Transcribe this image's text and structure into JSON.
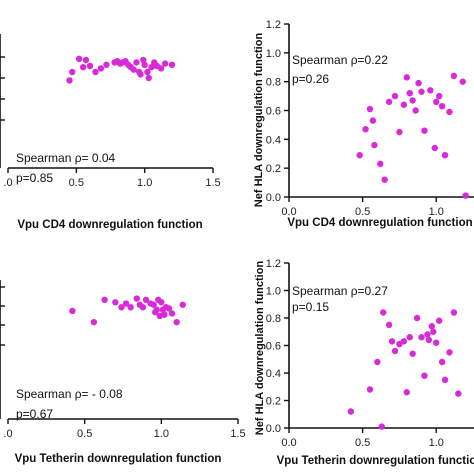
{
  "colors": {
    "point": "#d92ad9",
    "axis": "#111111"
  },
  "chart_data": [
    {
      "panel": "top-left",
      "type": "scatter",
      "xlabel": "Vpu CD4 downregulation function",
      "ylabel": "",
      "xlim": [
        0.0,
        1.5
      ],
      "ylim": [
        0.0,
        1.2
      ],
      "x_ticks": [
        0.0,
        0.5,
        1.0,
        1.5
      ],
      "x_tick_labels": [
        ".0",
        "0.5",
        "1.0",
        "1.5"
      ],
      "y_ticks": [],
      "y_tick_labels": [],
      "stats": [
        "Spearman ρ= 0.04",
        "p=0.85"
      ],
      "points": [
        [
          0.45,
          0.73
        ],
        [
          0.47,
          0.8
        ],
        [
          0.52,
          0.91
        ],
        [
          0.55,
          0.84
        ],
        [
          0.57,
          0.9
        ],
        [
          0.6,
          0.85
        ],
        [
          0.64,
          0.8
        ],
        [
          0.68,
          0.83
        ],
        [
          0.72,
          0.86
        ],
        [
          0.78,
          0.88
        ],
        [
          0.8,
          0.89
        ],
        [
          0.82,
          0.87
        ],
        [
          0.84,
          0.88
        ],
        [
          0.86,
          0.89
        ],
        [
          0.88,
          0.86
        ],
        [
          0.9,
          0.84
        ],
        [
          0.92,
          0.82
        ],
        [
          0.94,
          0.88
        ],
        [
          0.96,
          0.8
        ],
        [
          0.97,
          0.78
        ],
        [
          0.99,
          0.9
        ],
        [
          1.0,
          0.86
        ],
        [
          1.02,
          0.8
        ],
        [
          1.03,
          0.75
        ],
        [
          1.05,
          0.84
        ],
        [
          1.07,
          0.88
        ],
        [
          1.09,
          0.85
        ],
        [
          1.12,
          0.83
        ],
        [
          1.15,
          0.87
        ],
        [
          1.2,
          0.86
        ]
      ]
    },
    {
      "panel": "top-right",
      "type": "scatter",
      "xlabel": "Vpu CD4 downregulation function",
      "ylabel": "Nef HLA downregulation function",
      "xlim": [
        0.0,
        1.2
      ],
      "ylim": [
        0.0,
        1.2
      ],
      "x_ticks": [
        0.0,
        0.5,
        1.0
      ],
      "x_tick_labels": [
        "0.0",
        "0.5",
        "1.0"
      ],
      "y_ticks": [
        0.0,
        0.2,
        0.4,
        0.6,
        0.8,
        1.0,
        1.2
      ],
      "y_tick_labels": [
        "0.0",
        "0.2",
        "0.4",
        "0.6",
        "0.8",
        "1.0",
        "1.2"
      ],
      "stats": [
        "Spearman ρ=0.22",
        "p=0.26"
      ],
      "points": [
        [
          0.48,
          0.29
        ],
        [
          0.52,
          0.47
        ],
        [
          0.55,
          0.61
        ],
        [
          0.57,
          0.53
        ],
        [
          0.58,
          0.36
        ],
        [
          0.62,
          0.23
        ],
        [
          0.65,
          0.12
        ],
        [
          0.68,
          0.66
        ],
        [
          0.72,
          0.7
        ],
        [
          0.75,
          0.45
        ],
        [
          0.78,
          0.64
        ],
        [
          0.8,
          0.83
        ],
        [
          0.82,
          0.72
        ],
        [
          0.84,
          0.67
        ],
        [
          0.86,
          0.6
        ],
        [
          0.88,
          0.79
        ],
        [
          0.9,
          0.73
        ],
        [
          0.92,
          0.46
        ],
        [
          0.96,
          0.74
        ],
        [
          0.99,
          0.34
        ],
        [
          1.0,
          0.66
        ],
        [
          1.02,
          0.7
        ],
        [
          1.04,
          0.63
        ],
        [
          1.06,
          0.29
        ],
        [
          1.09,
          0.59
        ],
        [
          1.12,
          0.84
        ],
        [
          1.18,
          0.8
        ],
        [
          1.2,
          0.01
        ]
      ]
    },
    {
      "panel": "bottom-left",
      "type": "scatter",
      "xlabel": "Vpu Tetherin downregulation function",
      "ylabel": "",
      "xlim": [
        0.0,
        1.5
      ],
      "ylim": [
        0.0,
        1.2
      ],
      "x_ticks": [
        0.0,
        0.5,
        1.0,
        1.5
      ],
      "x_tick_labels": [
        ".0",
        "0.5",
        "1.0",
        "1.5"
      ],
      "y_ticks": [],
      "y_tick_labels": [],
      "stats": [
        "Spearman ρ= - 0.08",
        "p=0.67"
      ],
      "points": [
        [
          0.42,
          0.87
        ],
        [
          0.56,
          0.78
        ],
        [
          0.63,
          0.96
        ],
        [
          0.7,
          0.94
        ],
        [
          0.74,
          0.9
        ],
        [
          0.77,
          0.93
        ],
        [
          0.8,
          0.9
        ],
        [
          0.84,
          0.97
        ],
        [
          0.86,
          0.92
        ],
        [
          0.88,
          0.9
        ],
        [
          0.9,
          0.96
        ],
        [
          0.93,
          0.93
        ],
        [
          0.95,
          0.92
        ],
        [
          0.96,
          0.86
        ],
        [
          0.97,
          0.88
        ],
        [
          0.98,
          0.96
        ],
        [
          0.99,
          0.83
        ],
        [
          1.0,
          0.94
        ],
        [
          1.01,
          0.88
        ],
        [
          1.02,
          0.84
        ],
        [
          1.03,
          0.9
        ],
        [
          1.05,
          0.89
        ],
        [
          1.07,
          0.85
        ],
        [
          1.1,
          0.78
        ],
        [
          1.14,
          0.92
        ]
      ]
    },
    {
      "panel": "bottom-right",
      "type": "scatter",
      "xlabel": "Vpu Tetherin downregulation function",
      "ylabel": "Nef HLA downregulation function",
      "xlim": [
        0.0,
        1.2
      ],
      "ylim": [
        0.0,
        1.2
      ],
      "x_ticks": [
        0.0,
        0.5,
        1.0
      ],
      "x_tick_labels": [
        "0.0",
        "0.5",
        "1.0"
      ],
      "y_ticks": [
        0.0,
        0.2,
        0.4,
        0.6,
        0.8,
        1.0,
        1.2
      ],
      "y_tick_labels": [
        "0.0",
        "0.2",
        "0.4",
        "0.6",
        "0.8",
        "1.0",
        "1.2"
      ],
      "stats": [
        "Spearman ρ=0.27",
        "p=0.15"
      ],
      "points": [
        [
          0.42,
          0.12
        ],
        [
          0.55,
          0.28
        ],
        [
          0.6,
          0.48
        ],
        [
          0.64,
          0.84
        ],
        [
          0.68,
          0.75
        ],
        [
          0.7,
          0.63
        ],
        [
          0.72,
          0.56
        ],
        [
          0.75,
          0.61
        ],
        [
          0.78,
          0.63
        ],
        [
          0.8,
          0.26
        ],
        [
          0.82,
          0.66
        ],
        [
          0.84,
          0.54
        ],
        [
          0.87,
          0.8
        ],
        [
          0.9,
          0.66
        ],
        [
          0.92,
          0.38
        ],
        [
          0.94,
          0.68
        ],
        [
          0.95,
          0.64
        ],
        [
          0.97,
          0.74
        ],
        [
          0.98,
          0.7
        ],
        [
          1.0,
          0.62
        ],
        [
          1.02,
          0.78
        ],
        [
          1.04,
          0.48
        ],
        [
          1.06,
          0.35
        ],
        [
          1.09,
          0.55
        ],
        [
          1.12,
          0.84
        ],
        [
          1.15,
          0.25
        ],
        [
          0.63,
          0.01
        ]
      ]
    }
  ]
}
